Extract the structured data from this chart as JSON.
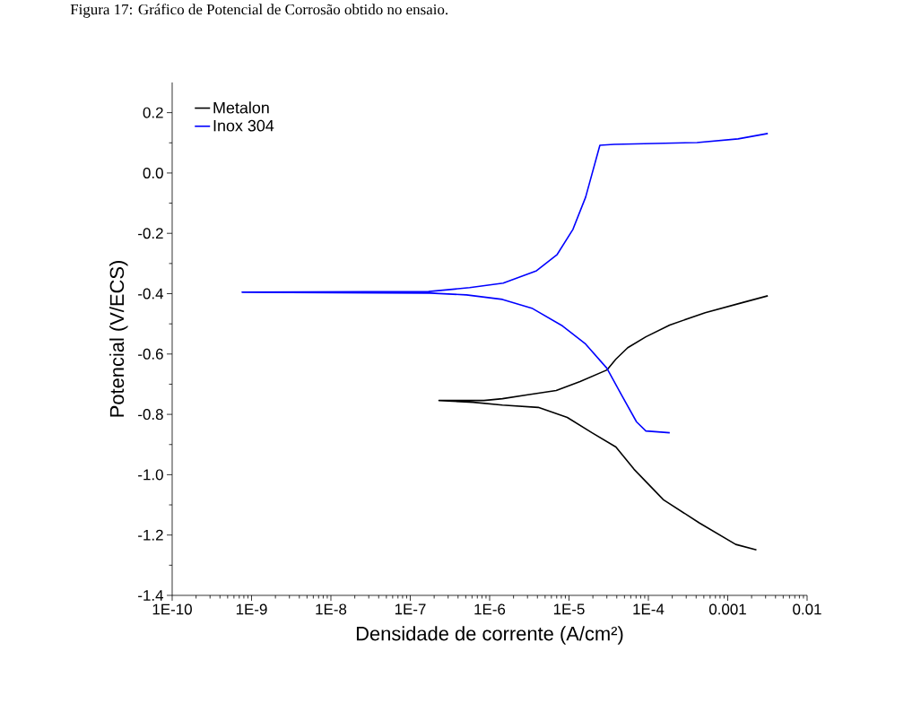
{
  "chart_data": {
    "type": "line",
    "title": "Figura 17: Gráfico de Potencial de Corrosão obtido no ensaio.",
    "xlabel": "Densidade de corrente (A/cm²)",
    "ylabel": "Potencial (V/ECS)",
    "log": "x",
    "grid": false,
    "legend": "top left",
    "marker": "none",
    "line_style": "solid",
    "xlim": [
      1e-10,
      0.01
    ],
    "ylim": [
      -1.4,
      0.3
    ],
    "xticks": [
      {
        "value": 1e-10,
        "label": "1E-10"
      },
      {
        "value": 1e-09,
        "label": "1E-9"
      },
      {
        "value": 1e-08,
        "label": "1E-8"
      },
      {
        "value": 1e-07,
        "label": "1E-7"
      },
      {
        "value": 1e-06,
        "label": "1E-6"
      },
      {
        "value": 1e-05,
        "label": "1E-5"
      },
      {
        "value": 0.0001,
        "label": "1E-4"
      },
      {
        "value": 0.001,
        "label": "0.001"
      },
      {
        "value": 0.01,
        "label": "0.01"
      }
    ],
    "yticks": [
      {
        "value": -1.4,
        "label": "-1.4"
      },
      {
        "value": -1.2,
        "label": "-1.2"
      },
      {
        "value": -1.0,
        "label": "-1.0"
      },
      {
        "value": -0.8,
        "label": "-0.8"
      },
      {
        "value": -0.6,
        "label": "-0.6"
      },
      {
        "value": -0.4,
        "label": "-0.4"
      },
      {
        "value": -0.2,
        "label": "-0.2"
      },
      {
        "value": 0.0,
        "label": "0.0"
      },
      {
        "value": 0.2,
        "label": "0.2"
      }
    ],
    "series": [
      {
        "name": "Metalon",
        "color": "#000000",
        "x": [
          0.0023,
          0.00126,
          0.00044,
          0.000155,
          6.6e-05,
          3.9e-05,
          1.95e-05,
          9.5e-06,
          4.1e-06,
          1.45e-06,
          6.2e-07,
          2.3e-07,
          8.5e-07,
          1.45e-06,
          2.9e-06,
          6.9e-06,
          1.38e-05,
          3e-05,
          3.9e-05,
          5.5e-05,
          9.3e-05,
          0.000186,
          0.00052,
          0.00151,
          0.0032
        ],
        "values": [
          -1.249,
          -1.231,
          -1.16,
          -1.083,
          -0.982,
          -0.908,
          -0.861,
          -0.81,
          -0.777,
          -0.769,
          -0.76,
          -0.754,
          -0.754,
          -0.748,
          -0.736,
          -0.721,
          -0.691,
          -0.653,
          -0.617,
          -0.579,
          -0.543,
          -0.504,
          -0.463,
          -0.43,
          -0.407
        ]
      },
      {
        "name": "Inox 304",
        "color": "#0000ff",
        "x": [
          0.000186,
          9.3e-05,
          7.1e-05,
          4.6e-05,
          3e-05,
          1.62e-05,
          8.3e-06,
          3.4e-06,
          1.45e-06,
          5.1e-07,
          1.78e-07,
          7.6e-10,
          1.7e-07,
          5.6e-07,
          1.48e-06,
          3.9e-06,
          7.1e-06,
          1.12e-05,
          1.62e-05,
          2.45e-05,
          3.7e-05,
          0.00041,
          0.00135,
          0.0032
        ],
        "values": [
          -0.861,
          -0.855,
          -0.825,
          -0.736,
          -0.647,
          -0.567,
          -0.507,
          -0.448,
          -0.419,
          -0.404,
          -0.398,
          -0.395,
          -0.393,
          -0.38,
          -0.365,
          -0.324,
          -0.27,
          -0.187,
          -0.08,
          0.092,
          0.095,
          0.101,
          0.113,
          0.131
        ]
      }
    ]
  }
}
